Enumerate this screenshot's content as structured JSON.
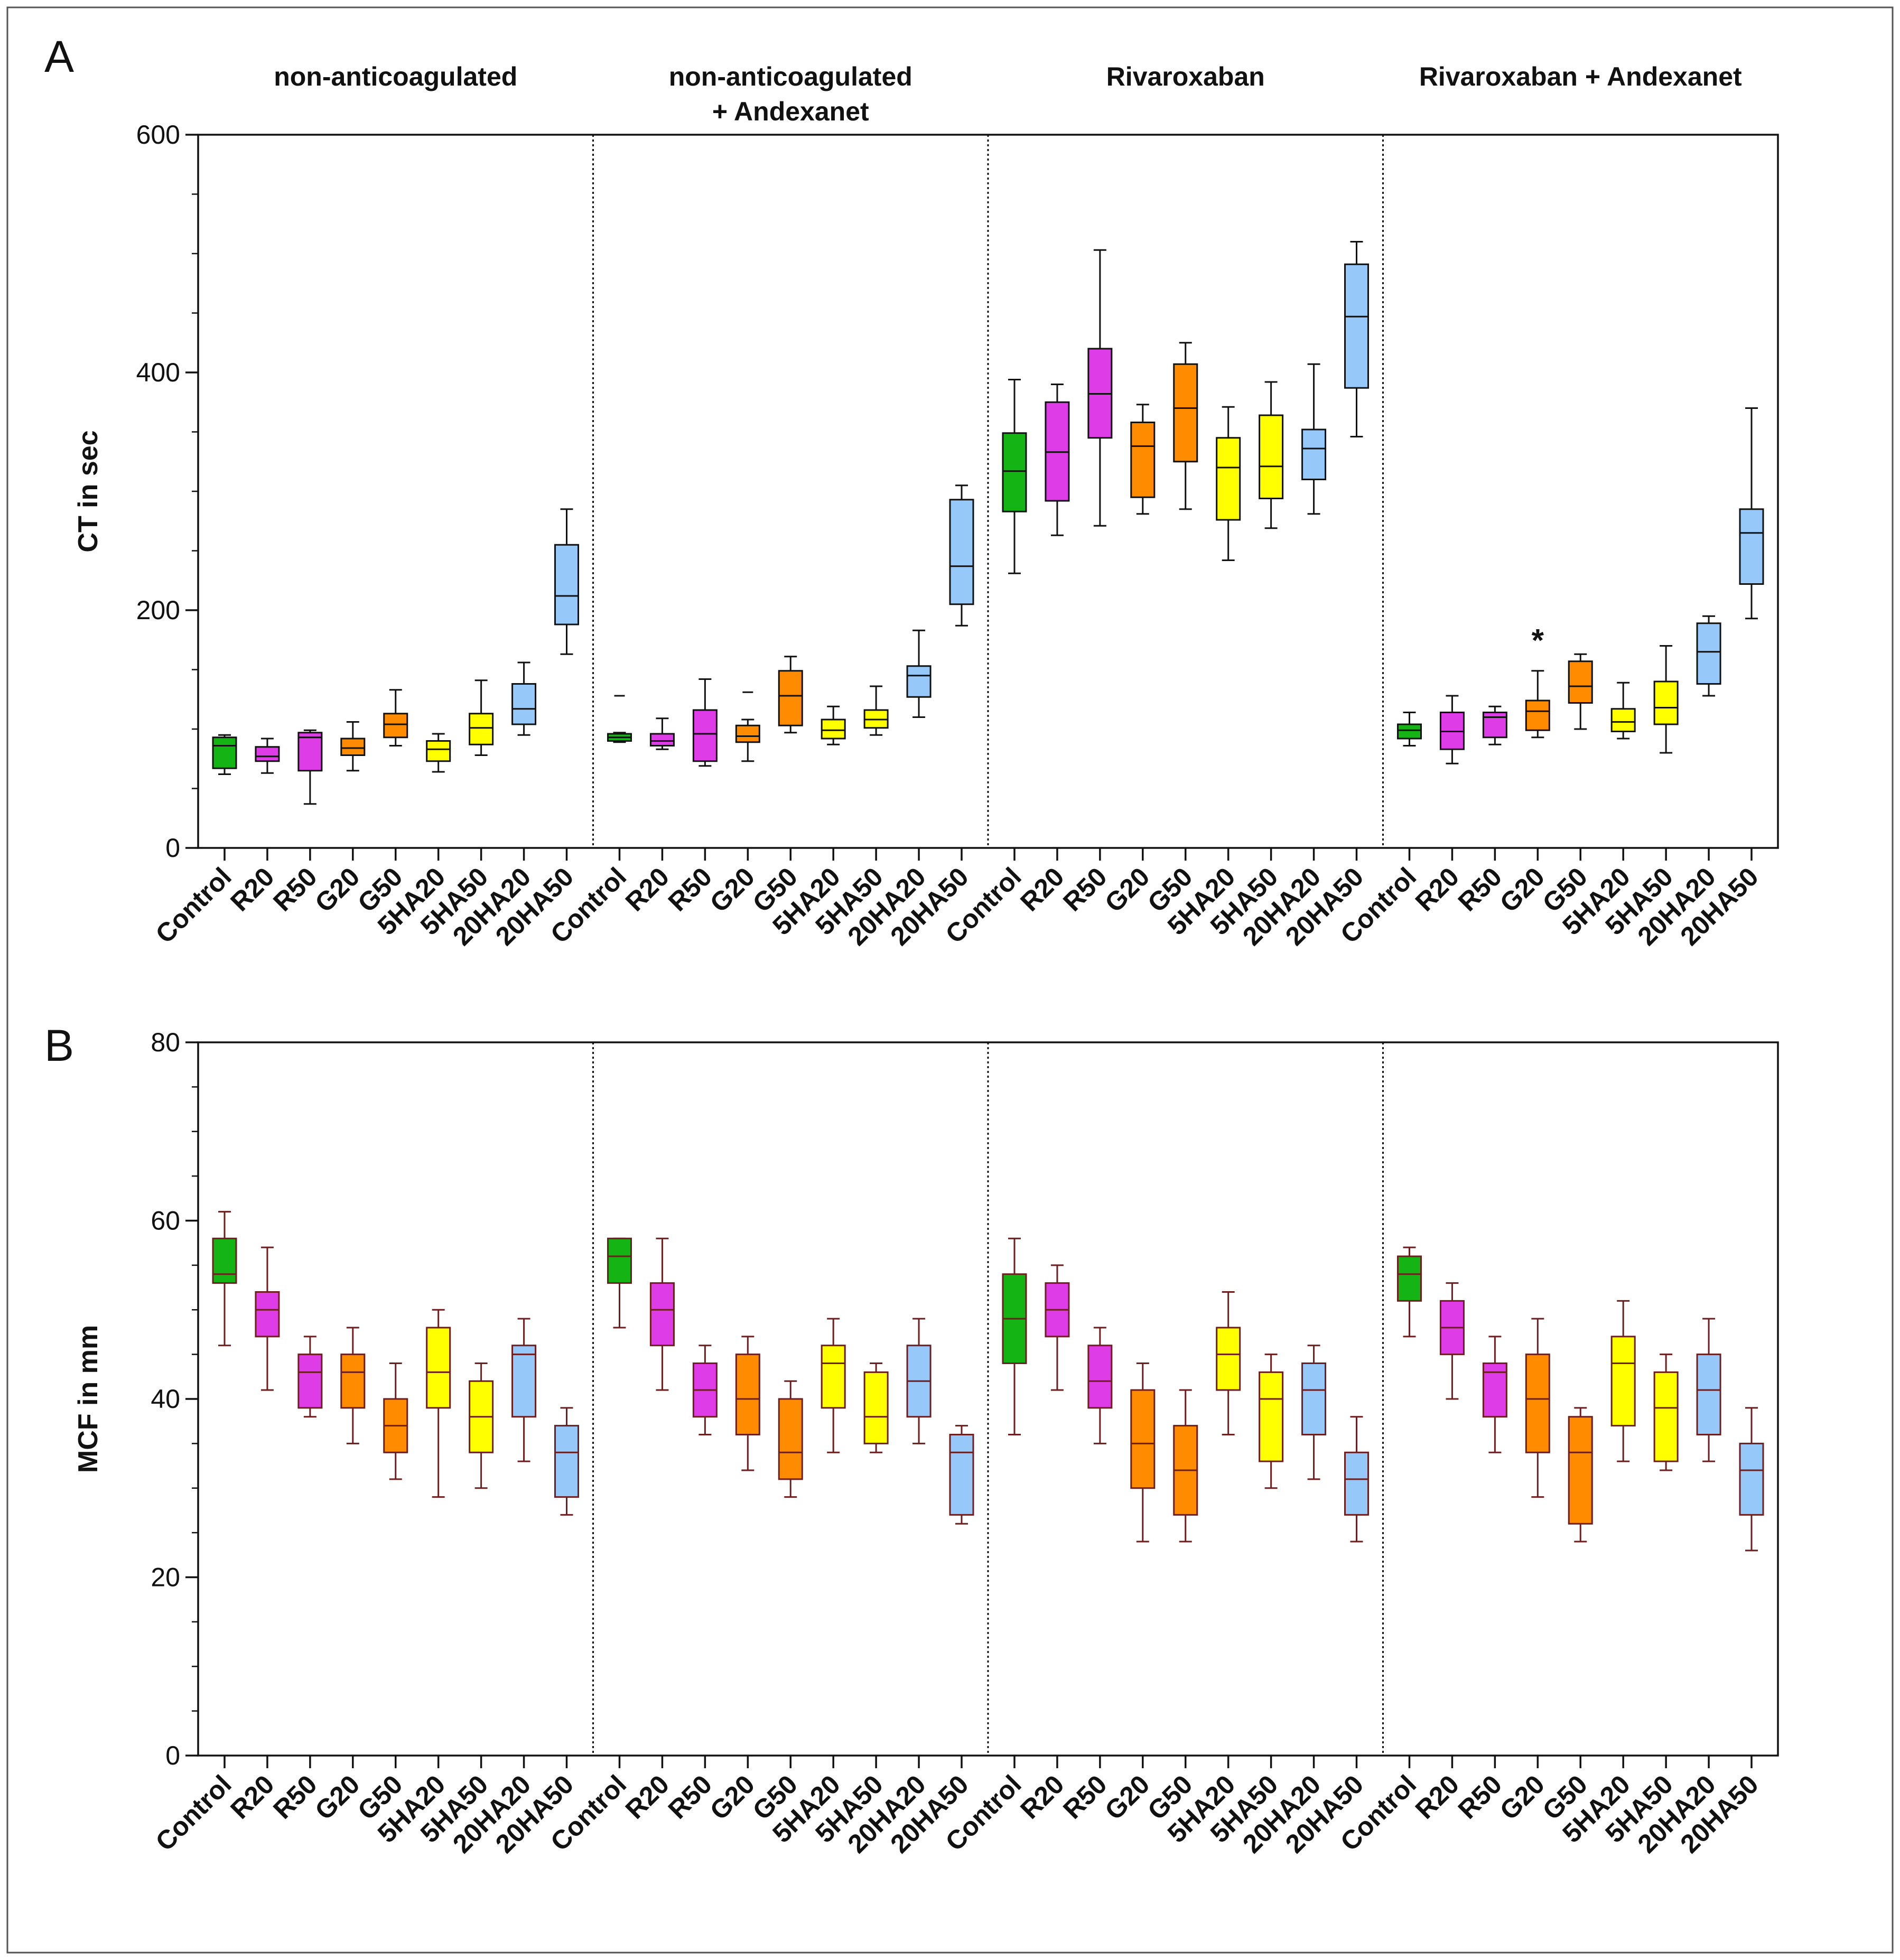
{
  "colors": {
    "Control": "#14b414",
    "R20": "#de3ce6",
    "R50": "#de3ce6",
    "G20": "#ff8c00",
    "G50": "#ff8c00",
    "5HA20": "#ffff00",
    "5HA50": "#ffff00",
    "20HA20": "#96c8fa",
    "20HA50": "#96c8fa",
    "whisker_A": "#111111",
    "whisker_B": "#6e1e1e"
  },
  "chart_data": [
    {
      "panel": "A",
      "type": "box",
      "ylabel": "CT in sec",
      "ylim": [
        0,
        600
      ],
      "yticks": [
        "0",
        "200",
        "400",
        "600"
      ],
      "minor_tick_step": 50,
      "groups": [
        "non-anticoagulated",
        "non-anticoagulated\n+ Andexanet",
        "Rivaroxaban",
        "Rivaroxaban + Andexanet"
      ],
      "categories": [
        "Control",
        "R20",
        "R50",
        "G20",
        "G50",
        "5HA20",
        "5HA50",
        "20HA20",
        "20HA50"
      ],
      "annotation": {
        "text": "*",
        "group": 3,
        "category": "G20",
        "y": 178
      },
      "series": [
        [
          {
            "min": 62,
            "q1": 67,
            "median": 86,
            "q3": 93,
            "max": 95
          },
          {
            "min": 63,
            "q1": 73,
            "median": 77,
            "q3": 85,
            "max": 92
          },
          {
            "min": 37,
            "q1": 65,
            "median": 93,
            "q3": 97,
            "max": 99
          },
          {
            "min": 65,
            "q1": 78,
            "median": 84,
            "q3": 92,
            "max": 106
          },
          {
            "min": 86,
            "q1": 93,
            "median": 104,
            "q3": 113,
            "max": 133
          },
          {
            "min": 64,
            "q1": 73,
            "median": 83,
            "q3": 90,
            "max": 96
          },
          {
            "min": 78,
            "q1": 87,
            "median": 101,
            "q3": 113,
            "max": 141
          },
          {
            "min": 95,
            "q1": 104,
            "median": 117,
            "q3": 138,
            "max": 156
          },
          {
            "min": 163,
            "q1": 188,
            "median": 212,
            "q3": 255,
            "max": 285
          }
        ],
        [
          {
            "min": 89,
            "q1": 90,
            "median": 93,
            "q3": 96,
            "max": 97,
            "outliers": [
              128
            ]
          },
          {
            "min": 83,
            "q1": 86,
            "median": 90,
            "q3": 96,
            "max": 109
          },
          {
            "min": 69,
            "q1": 73,
            "median": 96,
            "q3": 116,
            "max": 142
          },
          {
            "min": 73,
            "q1": 89,
            "median": 94,
            "q3": 103,
            "max": 108,
            "outliers": [
              131
            ]
          },
          {
            "min": 97,
            "q1": 103,
            "median": 128,
            "q3": 149,
            "max": 161
          },
          {
            "min": 87,
            "q1": 92,
            "median": 99,
            "q3": 108,
            "max": 119
          },
          {
            "min": 95,
            "q1": 101,
            "median": 108,
            "q3": 116,
            "max": 136
          },
          {
            "min": 110,
            "q1": 127,
            "median": 145,
            "q3": 153,
            "max": 183
          },
          {
            "min": 187,
            "q1": 205,
            "median": 237,
            "q3": 293,
            "max": 305
          }
        ],
        [
          {
            "min": 231,
            "q1": 283,
            "median": 317,
            "q3": 349,
            "max": 394
          },
          {
            "min": 263,
            "q1": 292,
            "median": 333,
            "q3": 375,
            "max": 390
          },
          {
            "min": 271,
            "q1": 345,
            "median": 382,
            "q3": 420,
            "max": 503
          },
          {
            "min": 281,
            "q1": 295,
            "median": 338,
            "q3": 358,
            "max": 373
          },
          {
            "min": 285,
            "q1": 325,
            "median": 370,
            "q3": 407,
            "max": 425
          },
          {
            "min": 242,
            "q1": 276,
            "median": 320,
            "q3": 345,
            "max": 371
          },
          {
            "min": 269,
            "q1": 294,
            "median": 321,
            "q3": 364,
            "max": 392
          },
          {
            "min": 281,
            "q1": 310,
            "median": 336,
            "q3": 352,
            "max": 407
          },
          {
            "min": 346,
            "q1": 387,
            "median": 447,
            "q3": 491,
            "max": 510
          }
        ],
        [
          {
            "min": 86,
            "q1": 92,
            "median": 99,
            "q3": 104,
            "max": 114
          },
          {
            "min": 71,
            "q1": 83,
            "median": 98,
            "q3": 114,
            "max": 128
          },
          {
            "min": 87,
            "q1": 93,
            "median": 110,
            "q3": 114,
            "max": 119
          },
          {
            "min": 93,
            "q1": 99,
            "median": 115,
            "q3": 124,
            "max": 149
          },
          {
            "min": 100,
            "q1": 122,
            "median": 136,
            "q3": 157,
            "max": 163
          },
          {
            "min": 92,
            "q1": 98,
            "median": 106,
            "q3": 117,
            "max": 139
          },
          {
            "min": 80,
            "q1": 104,
            "median": 118,
            "q3": 140,
            "max": 170
          },
          {
            "min": 128,
            "q1": 138,
            "median": 165,
            "q3": 189,
            "max": 195
          },
          {
            "min": 193,
            "q1": 222,
            "median": 265,
            "q3": 285,
            "max": 370
          }
        ]
      ]
    },
    {
      "panel": "B",
      "type": "box",
      "ylabel": "MCF in mm",
      "ylim": [
        0,
        80
      ],
      "yticks": [
        "0",
        "20",
        "40",
        "60",
        "80"
      ],
      "minor_tick_step": 5,
      "categories": [
        "Control",
        "R20",
        "R50",
        "G20",
        "G50",
        "5HA20",
        "5HA50",
        "20HA20",
        "20HA50"
      ],
      "series": [
        [
          {
            "min": 46,
            "q1": 53,
            "median": 54,
            "q3": 58,
            "max": 61
          },
          {
            "min": 41,
            "q1": 47,
            "median": 50,
            "q3": 52,
            "max": 57
          },
          {
            "min": 38,
            "q1": 39,
            "median": 43,
            "q3": 45,
            "max": 47
          },
          {
            "min": 35,
            "q1": 39,
            "median": 43,
            "q3": 45,
            "max": 48
          },
          {
            "min": 31,
            "q1": 34,
            "median": 37,
            "q3": 40,
            "max": 44
          },
          {
            "min": 29,
            "q1": 39,
            "median": 43,
            "q3": 48,
            "max": 50
          },
          {
            "min": 30,
            "q1": 34,
            "median": 38,
            "q3": 42,
            "max": 44
          },
          {
            "min": 33,
            "q1": 38,
            "median": 45,
            "q3": 46,
            "max": 49
          },
          {
            "min": 27,
            "q1": 29,
            "median": 34,
            "q3": 37,
            "max": 39
          }
        ],
        [
          {
            "min": 48,
            "q1": 53,
            "median": 56,
            "q3": 58,
            "max": 58
          },
          {
            "min": 41,
            "q1": 46,
            "median": 50,
            "q3": 53,
            "max": 58
          },
          {
            "min": 36,
            "q1": 38,
            "median": 41,
            "q3": 44,
            "max": 46
          },
          {
            "min": 32,
            "q1": 36,
            "median": 40,
            "q3": 45,
            "max": 47
          },
          {
            "min": 29,
            "q1": 31,
            "median": 34,
            "q3": 40,
            "max": 42
          },
          {
            "min": 34,
            "q1": 39,
            "median": 44,
            "q3": 46,
            "max": 49
          },
          {
            "min": 34,
            "q1": 35,
            "median": 38,
            "q3": 43,
            "max": 44
          },
          {
            "min": 35,
            "q1": 38,
            "median": 42,
            "q3": 46,
            "max": 49
          },
          {
            "min": 26,
            "q1": 27,
            "median": 34,
            "q3": 36,
            "max": 37
          }
        ],
        [
          {
            "min": 36,
            "q1": 44,
            "median": 49,
            "q3": 54,
            "max": 58
          },
          {
            "min": 41,
            "q1": 47,
            "median": 50,
            "q3": 53,
            "max": 55
          },
          {
            "min": 35,
            "q1": 39,
            "median": 42,
            "q3": 46,
            "max": 48
          },
          {
            "min": 24,
            "q1": 30,
            "median": 35,
            "q3": 41,
            "max": 44
          },
          {
            "min": 24,
            "q1": 27,
            "median": 32,
            "q3": 37,
            "max": 41
          },
          {
            "min": 36,
            "q1": 41,
            "median": 45,
            "q3": 48,
            "max": 52
          },
          {
            "min": 30,
            "q1": 33,
            "median": 40,
            "q3": 43,
            "max": 45
          },
          {
            "min": 31,
            "q1": 36,
            "median": 41,
            "q3": 44,
            "max": 46
          },
          {
            "min": 24,
            "q1": 27,
            "median": 31,
            "q3": 34,
            "max": 38
          }
        ],
        [
          {
            "min": 47,
            "q1": 51,
            "median": 54,
            "q3": 56,
            "max": 57
          },
          {
            "min": 40,
            "q1": 45,
            "median": 48,
            "q3": 51,
            "max": 53
          },
          {
            "min": 34,
            "q1": 38,
            "median": 43,
            "q3": 44,
            "max": 47
          },
          {
            "min": 29,
            "q1": 34,
            "median": 40,
            "q3": 45,
            "max": 49
          },
          {
            "min": 24,
            "q1": 26,
            "median": 34,
            "q3": 38,
            "max": 39
          },
          {
            "min": 33,
            "q1": 37,
            "median": 44,
            "q3": 47,
            "max": 51
          },
          {
            "min": 32,
            "q1": 33,
            "median": 39,
            "q3": 43,
            "max": 45
          },
          {
            "min": 33,
            "q1": 36,
            "median": 41,
            "q3": 45,
            "max": 49
          },
          {
            "min": 23,
            "q1": 27,
            "median": 32,
            "q3": 35,
            "max": 39
          }
        ]
      ]
    }
  ],
  "panel_letters": [
    "A",
    "B"
  ]
}
